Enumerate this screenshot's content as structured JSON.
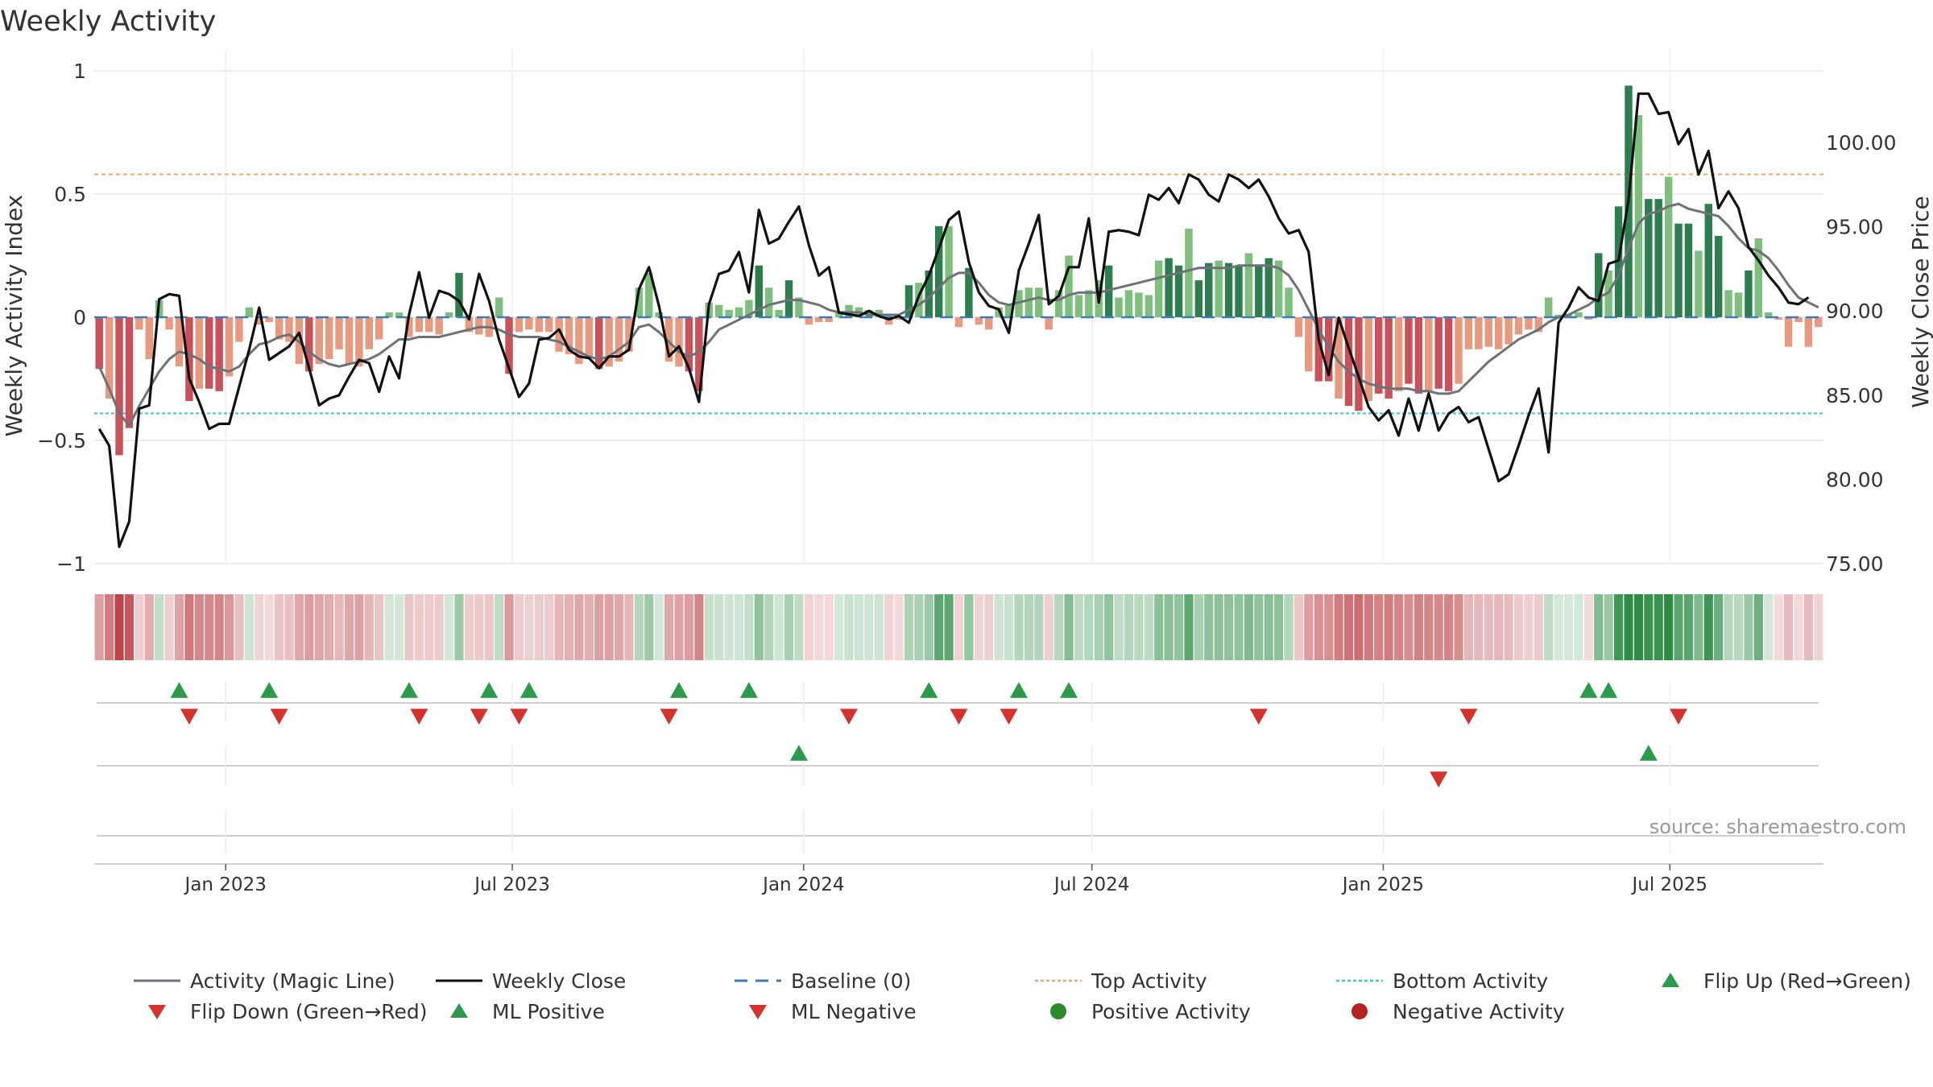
{
  "chart_data": {
    "type": "bar",
    "title": "Weekly Activity",
    "ylabel": "Weekly Activity Index",
    "y2label": "Weekly Close Price",
    "source": "source: sharemaestro.com",
    "ylim": [
      -1,
      1
    ],
    "y2lim": [
      75,
      104
    ],
    "yticks": [
      "1",
      "0.5",
      "0",
      "−0.5",
      "−1"
    ],
    "ytick_values": [
      1,
      0.5,
      0,
      -0.5,
      -1
    ],
    "y2ticks": [
      "100.00",
      "95.00",
      "90.00",
      "85.00",
      "80.00",
      "75.00"
    ],
    "y2tick_values": [
      100,
      95,
      90,
      85,
      80,
      75
    ],
    "x_start": "2022-10-10",
    "x_end": "2025-10-06",
    "xticks": [
      "Jan 2023",
      "Jul 2023",
      "Jan 2024",
      "Jul 2024",
      "Jan 2025",
      "Jul 2025"
    ],
    "xtick_dates": [
      "2023-01-01",
      "2023-07-01",
      "2024-01-01",
      "2024-07-01",
      "2025-01-01",
      "2025-07-01"
    ],
    "top_activity": 0.58,
    "bottom_activity": -0.39,
    "baseline": 0,
    "weekly_activity": [
      -0.21,
      -0.33,
      -0.56,
      -0.45,
      -0.05,
      -0.17,
      0.07,
      -0.05,
      -0.2,
      -0.34,
      -0.29,
      -0.29,
      -0.3,
      -0.24,
      -0.1,
      0.04,
      -0.03,
      -0.02,
      -0.09,
      -0.1,
      -0.19,
      -0.22,
      -0.19,
      -0.17,
      -0.13,
      -0.19,
      -0.2,
      -0.13,
      -0.09,
      0.02,
      0.02,
      -0.08,
      -0.06,
      -0.06,
      -0.07,
      0.02,
      0.18,
      -0.06,
      -0.07,
      -0.08,
      0.08,
      -0.23,
      -0.06,
      -0.05,
      -0.06,
      -0.06,
      -0.14,
      -0.15,
      -0.19,
      -0.16,
      -0.21,
      -0.2,
      -0.18,
      -0.14,
      0.12,
      0.18,
      0.02,
      -0.18,
      -0.2,
      -0.22,
      -0.3,
      0.06,
      0.05,
      0.03,
      0.04,
      0.07,
      0.21,
      0.12,
      0.03,
      0.15,
      0.08,
      -0.03,
      -0.02,
      -0.02,
      0.02,
      0.05,
      0.04,
      0.03,
      0.03,
      -0.03,
      -0.01,
      0.13,
      0.14,
      0.19,
      0.37,
      0.37,
      -0.04,
      0.2,
      -0.03,
      -0.05,
      0.04,
      0.05,
      0.11,
      0.12,
      0.12,
      -0.05,
      0.11,
      0.25,
      0.09,
      0.11,
      0.15,
      0.21,
      0.08,
      0.11,
      0.1,
      0.09,
      0.23,
      0.24,
      0.21,
      0.36,
      0.15,
      0.22,
      0.23,
      0.22,
      0.21,
      0.26,
      0.21,
      0.24,
      0.23,
      0.12,
      -0.08,
      -0.22,
      -0.26,
      -0.26,
      -0.33,
      -0.36,
      -0.38,
      -0.34,
      -0.31,
      -0.33,
      -0.3,
      -0.27,
      -0.31,
      -0.3,
      -0.29,
      -0.3,
      -0.27,
      -0.13,
      -0.13,
      -0.12,
      -0.13,
      -0.11,
      -0.07,
      -0.05,
      -0.06,
      0.08,
      0.01,
      0.01,
      0.02,
      -0.01,
      0.26,
      0.19,
      0.45,
      0.94,
      0.82,
      0.48,
      0.48,
      0.57,
      0.38,
      0.38,
      0.27,
      0.46,
      0.33,
      0.11,
      0.1,
      0.19,
      0.32,
      0.02,
      -0.01,
      -0.12,
      -0.02,
      -0.12,
      -0.04
    ],
    "magic_line": [
      -0.2,
      -0.29,
      -0.39,
      -0.44,
      -0.36,
      -0.29,
      -0.22,
      -0.17,
      -0.14,
      -0.15,
      -0.17,
      -0.2,
      -0.21,
      -0.22,
      -0.2,
      -0.15,
      -0.11,
      -0.1,
      -0.08,
      -0.07,
      -0.1,
      -0.14,
      -0.17,
      -0.19,
      -0.2,
      -0.19,
      -0.18,
      -0.17,
      -0.15,
      -0.12,
      -0.09,
      -0.09,
      -0.08,
      -0.08,
      -0.08,
      -0.07,
      -0.06,
      -0.05,
      -0.04,
      -0.04,
      -0.05,
      -0.07,
      -0.08,
      -0.08,
      -0.08,
      -0.09,
      -0.1,
      -0.12,
      -0.14,
      -0.16,
      -0.17,
      -0.16,
      -0.13,
      -0.1,
      -0.04,
      -0.03,
      -0.06,
      -0.1,
      -0.14,
      -0.16,
      -0.14,
      -0.1,
      -0.05,
      -0.03,
      -0.01,
      0.01,
      0.03,
      0.05,
      0.06,
      0.07,
      0.07,
      0.06,
      0.05,
      0.03,
      0.02,
      0.02,
      0.02,
      0.01,
      0.01,
      0.01,
      0.01,
      0.03,
      0.05,
      0.08,
      0.12,
      0.16,
      0.18,
      0.18,
      0.14,
      0.09,
      0.06,
      0.05,
      0.06,
      0.07,
      0.08,
      0.07,
      0.07,
      0.09,
      0.1,
      0.1,
      0.1,
      0.11,
      0.12,
      0.13,
      0.14,
      0.15,
      0.16,
      0.17,
      0.18,
      0.19,
      0.2,
      0.2,
      0.2,
      0.2,
      0.21,
      0.21,
      0.21,
      0.21,
      0.2,
      0.17,
      0.11,
      0.03,
      -0.05,
      -0.12,
      -0.18,
      -0.22,
      -0.25,
      -0.27,
      -0.28,
      -0.29,
      -0.29,
      -0.29,
      -0.3,
      -0.3,
      -0.31,
      -0.31,
      -0.3,
      -0.26,
      -0.22,
      -0.18,
      -0.15,
      -0.12,
      -0.09,
      -0.07,
      -0.05,
      -0.02,
      0.0,
      0.01,
      0.03,
      0.05,
      0.08,
      0.1,
      0.17,
      0.28,
      0.38,
      0.42,
      0.43,
      0.45,
      0.46,
      0.44,
      0.43,
      0.42,
      0.41,
      0.37,
      0.32,
      0.28,
      0.27,
      0.24,
      0.19,
      0.13,
      0.08,
      0.06,
      0.04
    ],
    "weekly_close": [
      83.0,
      82.0,
      76.0,
      77.5,
      84.2,
      84.4,
      90.7,
      91.0,
      90.9,
      86.0,
      84.6,
      83.0,
      83.3,
      83.3,
      85.5,
      87.7,
      90.2,
      87.1,
      87.5,
      87.9,
      88.7,
      86.6,
      84.4,
      84.8,
      85.0,
      86.1,
      87.1,
      86.9,
      85.2,
      87.3,
      86.0,
      89.8,
      92.3,
      89.6,
      91.2,
      91.0,
      90.6,
      89.5,
      92.2,
      90.6,
      88.3,
      86.6,
      84.9,
      85.7,
      88.3,
      88.4,
      88.9,
      87.7,
      87.3,
      87.2,
      86.6,
      87.3,
      87.3,
      87.7,
      91.3,
      92.6,
      90.3,
      87.3,
      87.9,
      86.6,
      84.6,
      90.4,
      92.2,
      92.4,
      93.5,
      91.1,
      96.0,
      94.0,
      94.3,
      95.3,
      96.2,
      93.9,
      92.1,
      92.6,
      89.9,
      89.8,
      89.7,
      90.0,
      89.7,
      89.5,
      89.7,
      89.3,
      90.9,
      92.1,
      93.7,
      95.4,
      95.9,
      92.9,
      91.1,
      90.3,
      90.1,
      88.7,
      92.4,
      94.0,
      95.7,
      90.4,
      90.9,
      92.6,
      92.6,
      95.5,
      90.5,
      94.7,
      94.8,
      94.7,
      94.5,
      96.9,
      96.6,
      97.3,
      96.4,
      98.1,
      97.8,
      96.9,
      96.5,
      98.1,
      97.8,
      97.3,
      97.8,
      96.8,
      95.5,
      94.6,
      94.8,
      93.5,
      88.3,
      86.2,
      89.6,
      87.8,
      86.1,
      84.3,
      83.5,
      84.1,
      82.6,
      84.8,
      82.9,
      85.1,
      82.9,
      83.9,
      84.3,
      83.4,
      83.7,
      81.8,
      79.9,
      80.3,
      82.0,
      83.8,
      85.4,
      81.6,
      89.3,
      90.2,
      91.4,
      90.8,
      90.6,
      92.8,
      93.0,
      96.6,
      102.9,
      102.9,
      101.7,
      101.8,
      99.9,
      100.8,
      98.1,
      99.5,
      96.1,
      97.1,
      96.1,
      93.8,
      93.0,
      92.1,
      91.4,
      90.5,
      90.4,
      90.8
    ],
    "heat_strip_note": "Colour band repeats each week's activity sign and strength",
    "markers": {
      "flip_up_weeks": [
        8,
        17,
        31,
        39,
        43,
        58,
        65,
        83,
        92,
        97,
        149,
        151
      ],
      "flip_down_weeks": [
        9,
        18,
        32,
        38,
        42,
        57,
        75,
        86,
        91,
        116,
        137,
        158
      ],
      "ml_positive_weeks": [
        70,
        155
      ],
      "ml_negative_weeks": [
        134
      ]
    },
    "legend": {
      "placement": "bottom",
      "items": [
        {
          "label": "Activity (Magic Line)",
          "symbol": "line",
          "color": "#6e7178"
        },
        {
          "label": "Weekly Close",
          "symbol": "line",
          "color": "#111111"
        },
        {
          "label": "Baseline (0)",
          "symbol": "dash",
          "color": "#3b7dbb"
        },
        {
          "label": "Top Activity",
          "symbol": "dot-line",
          "color": "#f0a46f"
        },
        {
          "label": "Bottom Activity",
          "symbol": "dot-line",
          "color": "#33c6d6"
        },
        {
          "label": "Flip Up (Red→Green)",
          "symbol": "tri-up",
          "color": "#2b9a4b"
        },
        {
          "label": "Flip Down (Green→Red)",
          "symbol": "tri-down",
          "color": "#d4322f"
        },
        {
          "label": "ML Positive",
          "symbol": "tri-up",
          "color": "#2b9a4b"
        },
        {
          "label": "ML Negative",
          "symbol": "tri-down",
          "color": "#d4322f"
        },
        {
          "label": "Positive Activity",
          "symbol": "circle",
          "color": "#2c8a2c"
        },
        {
          "label": "Negative Activity",
          "symbol": "circle",
          "color": "#b22222"
        }
      ]
    },
    "colors": {
      "pos_strong": "#2e7d4f",
      "pos_light": "#7ebf7e",
      "neg_strong": "#c9525a",
      "neg_light": "#e89a80",
      "close_line": "#111111",
      "magic_line": "#6e7178",
      "baseline": "#3b7dbb",
      "top_line": "#f0a46f",
      "bottom_line": "#33c6d6",
      "flip_up": "#2b9a4b",
      "flip_down": "#d4322f",
      "grid": "#e6e6e6",
      "axis_text": "#333333",
      "source_text": "#999999"
    }
  }
}
